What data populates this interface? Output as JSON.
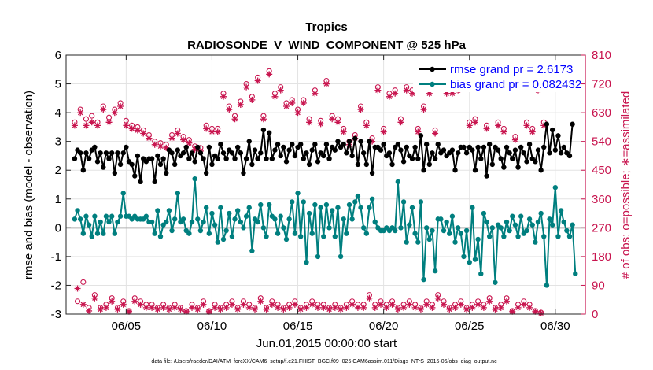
{
  "chart_data": {
    "type": "line",
    "title": "Tropics",
    "subtitle": "RADIOSONDE_V_WIND_COMPONENT @ 525 hPa",
    "xlabel": "Jun.01,2015 00:00:00 start",
    "ylabel": "rmse and bias (model - observation)",
    "y2label": "# of obs: o=possible; ∗=assimilated",
    "footnote": "data file: /Users/raeder/DAI/ATM_forcXX/CAM6_setup/f.e21.FHIST_BGC.f09_025.CAM6assim.011/Diags_NTrS_2015-06/obs_diag_output.nc",
    "x_unit": "days since Jun.01,2015 00:00",
    "xlim": [
      0.5,
      30.75
    ],
    "ylim": [
      -3,
      6
    ],
    "y2lim": [
      0,
      810
    ],
    "x_ticks": [
      4,
      9,
      14,
      19,
      24,
      29
    ],
    "x_tick_labels": [
      "06/05",
      "06/10",
      "06/15",
      "06/20",
      "06/25",
      "06/30"
    ],
    "y_ticks": [
      -3,
      -2,
      -1,
      0,
      1,
      2,
      3,
      4,
      5,
      6
    ],
    "y2_ticks": [
      0,
      90,
      180,
      270,
      360,
      450,
      540,
      630,
      720,
      810
    ],
    "zero_line": 0,
    "legend": [
      {
        "label": "rmse grand pr = 2.6173",
        "color": "#000000",
        "marker": "circle"
      },
      {
        "label": "bias grand pr = 0.082432",
        "color": "#007f7f",
        "marker": "circle"
      }
    ],
    "legend_position": "top-right",
    "series": [
      {
        "name": "rmse",
        "axis": "left",
        "color": "#000000",
        "values": [
          2.4,
          2.7,
          2.6,
          2.0,
          2.6,
          2.4,
          2.7,
          2.8,
          2.3,
          2.6,
          2.1,
          2.6,
          2.4,
          2.6,
          1.9,
          2.6,
          2.2,
          2.6,
          2.8,
          2.3,
          2.2,
          1.8,
          2.5,
          1.6,
          2.4,
          2.3,
          2.4,
          2.4,
          1.6,
          2.5,
          2.2,
          2.4,
          1.9,
          2.7,
          2.6,
          2.2,
          2.7,
          2.5,
          2.6,
          2.8,
          2.4,
          2.6,
          2.3,
          2.8,
          2.6,
          2.4,
          1.9,
          2.8,
          2.2,
          2.5,
          2.4,
          2.9,
          2.6,
          2.4,
          2.7,
          2.6,
          2.4,
          2.8,
          2.6,
          1.9,
          2.4,
          3.0,
          2.2,
          2.7,
          2.4,
          2.6,
          3.4,
          2.4,
          3.3,
          2.4,
          2.7,
          2.9,
          2.5,
          2.8,
          2.3,
          2.7,
          2.9,
          2.5,
          2.8,
          2.9,
          2.4,
          2.6,
          2.2,
          2.7,
          2.9,
          2.3,
          2.6,
          2.5,
          2.9,
          2.4,
          2.8,
          2.7,
          3.0,
          2.8,
          2.9,
          2.6,
          3.0,
          2.5,
          3.1,
          2.2,
          3.0,
          2.6,
          2.2,
          3.0,
          1.9,
          2.8,
          2.8,
          2.7,
          2.9,
          2.5,
          2.6,
          2.2,
          2.8,
          2.9,
          2.7,
          2.3,
          2.8,
          2.5,
          2.4,
          2.8,
          2.4,
          3.2,
          2.0,
          2.9,
          2.2,
          2.6,
          2.4,
          2.9,
          2.6,
          2.7,
          2.5,
          2.6,
          2.7,
          2.0,
          2.6,
          2.8,
          2.8,
          2.6,
          2.8,
          2.7,
          2.0,
          2.8,
          2.4,
          2.8,
          1.8,
          2.9,
          2.2,
          2.8,
          2.7,
          2.4,
          2.1,
          2.8,
          2.6,
          2.4,
          2.7,
          2.1,
          2.8,
          2.6,
          2.3,
          2.9,
          2.4,
          2.3,
          2.7,
          2.0,
          2.8,
          3.6,
          2.6,
          3.4,
          2.7,
          3.2,
          2.6,
          2.8,
          2.6,
          2.5,
          3.6
        ]
      },
      {
        "name": "bias",
        "axis": "left",
        "color": "#007f7f",
        "values": [
          0.3,
          0.6,
          0.3,
          -0.2,
          0.4,
          0.1,
          -0.3,
          0.4,
          -0.2,
          0.2,
          -0.2,
          0.4,
          0.2,
          0.4,
          -0.2,
          0.2,
          0.4,
          1.2,
          0.4,
          0.4,
          0.3,
          0.4,
          0.3,
          0.3,
          0.3,
          0.4,
          0.2,
          0.2,
          -0.2,
          0.6,
          -0.3,
          0.1,
          0.2,
          0.6,
          -0.1,
          0.3,
          1.2,
          0.2,
          0.3,
          -0.1,
          -0.2,
          0.2,
          1.7,
          0.3,
          -0.1,
          0.2,
          0.7,
          -0.2,
          0.5,
          0.1,
          -0.5,
          0.7,
          -0.4,
          -0.1,
          0.5,
          -0.3,
          0.3,
          0.6,
          0.2,
          0.0,
          0.4,
          0.7,
          -0.8,
          0.3,
          0.2,
          0.8,
          0.0,
          -0.3,
          0.8,
          0.4,
          0.3,
          -0.2,
          0.4,
          0.0,
          -0.4,
          0.3,
          0.9,
          -0.2,
          1.2,
          -0.3,
          0.9,
          -1.2,
          0.5,
          -0.2,
          0.8,
          -1.0,
          0.7,
          -0.3,
          0.8,
          0.0,
          0.6,
          -0.3,
          0.7,
          -1.0,
          0.3,
          -0.2,
          0.8,
          0.3,
          0.9,
          1.1,
          0.7,
          0.0,
          -0.2,
          0.7,
          1.0,
          0.2,
          0.0,
          -0.1,
          -0.1,
          0.0,
          -0.1,
          0.0,
          -0.1,
          1.6,
          0.0,
          0.9,
          -0.5,
          0.1,
          0.7,
          -0.2,
          -0.5,
          0.9,
          -1.8,
          0.0,
          -0.4,
          -0.1,
          -1.5,
          0.3,
          0.3,
          -0.1,
          0.2,
          -0.2,
          0.4,
          -0.5,
          0.0,
          -0.2,
          -1.0,
          -0.1,
          -1.2,
          0.7,
          -1.1,
          -0.4,
          -1.6,
          0.5,
          0.2,
          -0.3,
          0.0,
          -1.9,
          0.1,
          0.0,
          -0.3,
          0.2,
          -0.1,
          0.4,
          0.1,
          -0.3,
          0.4,
          -0.2,
          -0.1,
          0.3,
          0.1,
          -0.5,
          0.2,
          0.5,
          -0.3,
          -2.0,
          0.3,
          0.1,
          1.4,
          -0.3,
          0.6,
          0.2,
          -0.1,
          -0.3,
          0.1,
          -1.6
        ]
      },
      {
        "name": "possible",
        "axis": "right",
        "color": "#c8154f",
        "marker": "circle",
        "values": [
          600,
          40,
          640,
          100,
          610,
          20,
          620,
          60,
          600,
          20,
          650,
          30,
          615,
          50,
          640,
          20,
          660,
          40,
          605,
          10,
          590,
          50,
          585,
          40,
          575,
          30,
          560,
          30,
          540,
          20,
          535,
          30,
          530,
          20,
          560,
          30,
          575,
          20,
          555,
          10,
          545,
          30,
          525,
          20,
          520,
          40,
          590,
          10,
          580,
          30,
          580,
          20,
          690,
          30,
          650,
          40,
          620,
          20,
          665,
          40,
          720,
          30,
          680,
          20,
          740,
          50,
          620,
          20,
          760,
          40,
          690,
          30,
          710,
          20,
          660,
          30,
          670,
          40,
          640,
          20,
          670,
          30,
          610,
          40,
          700,
          30,
          605,
          30,
          730,
          20,
          620,
          30,
          610,
          20,
          580,
          30,
          540,
          40,
          560,
          30,
          650,
          30,
          600,
          60,
          550,
          30,
          710,
          40,
          580,
          30,
          690,
          40,
          700,
          20,
          610,
          30,
          710,
          40,
          700,
          30,
          580,
          20,
          650,
          40,
          700,
          30,
          575,
          60,
          735,
          40,
          700,
          20,
          700,
          30,
          710,
          40,
          720,
          20,
          600,
          30,
          610,
          40,
          730,
          30,
          590,
          50,
          740,
          20,
          600,
          30,
          580,
          50,
          730,
          10,
          555,
          30,
          730,
          40,
          600,
          30,
          580,
          10,
          710,
          5,
          600
        ]
      },
      {
        "name": "assimilated",
        "axis": "right",
        "color": "#c8154f",
        "marker": "asterisk",
        "values": [
          590,
          80,
          630,
          30,
          590,
          10,
          600,
          50,
          590,
          15,
          640,
          20,
          600,
          40,
          630,
          15,
          650,
          30,
          590,
          8,
          580,
          40,
          575,
          30,
          565,
          20,
          550,
          20,
          530,
          15,
          525,
          20,
          520,
          15,
          550,
          20,
          565,
          15,
          545,
          8,
          535,
          20,
          515,
          15,
          510,
          30,
          580,
          8,
          570,
          20,
          570,
          15,
          680,
          20,
          640,
          30,
          610,
          15,
          655,
          30,
          710,
          20,
          670,
          15,
          730,
          40,
          610,
          15,
          750,
          30,
          680,
          20,
          700,
          15,
          650,
          20,
          660,
          30,
          630,
          15,
          660,
          20,
          600,
          30,
          690,
          20,
          595,
          20,
          720,
          15,
          610,
          20,
          600,
          15,
          570,
          20,
          530,
          30,
          550,
          20,
          640,
          20,
          590,
          50,
          540,
          20,
          700,
          30,
          570,
          20,
          680,
          30,
          690,
          15,
          600,
          20,
          700,
          30,
          690,
          20,
          570,
          15,
          640,
          30,
          690,
          20,
          565,
          50,
          725,
          30,
          690,
          15,
          690,
          20,
          700,
          30,
          710,
          15,
          590,
          20,
          600,
          30,
          720,
          20,
          580,
          40,
          730,
          15,
          590,
          20,
          570,
          40,
          720,
          8,
          545,
          20,
          720,
          30,
          590,
          20,
          570,
          8,
          700,
          3,
          590
        ]
      }
    ]
  }
}
